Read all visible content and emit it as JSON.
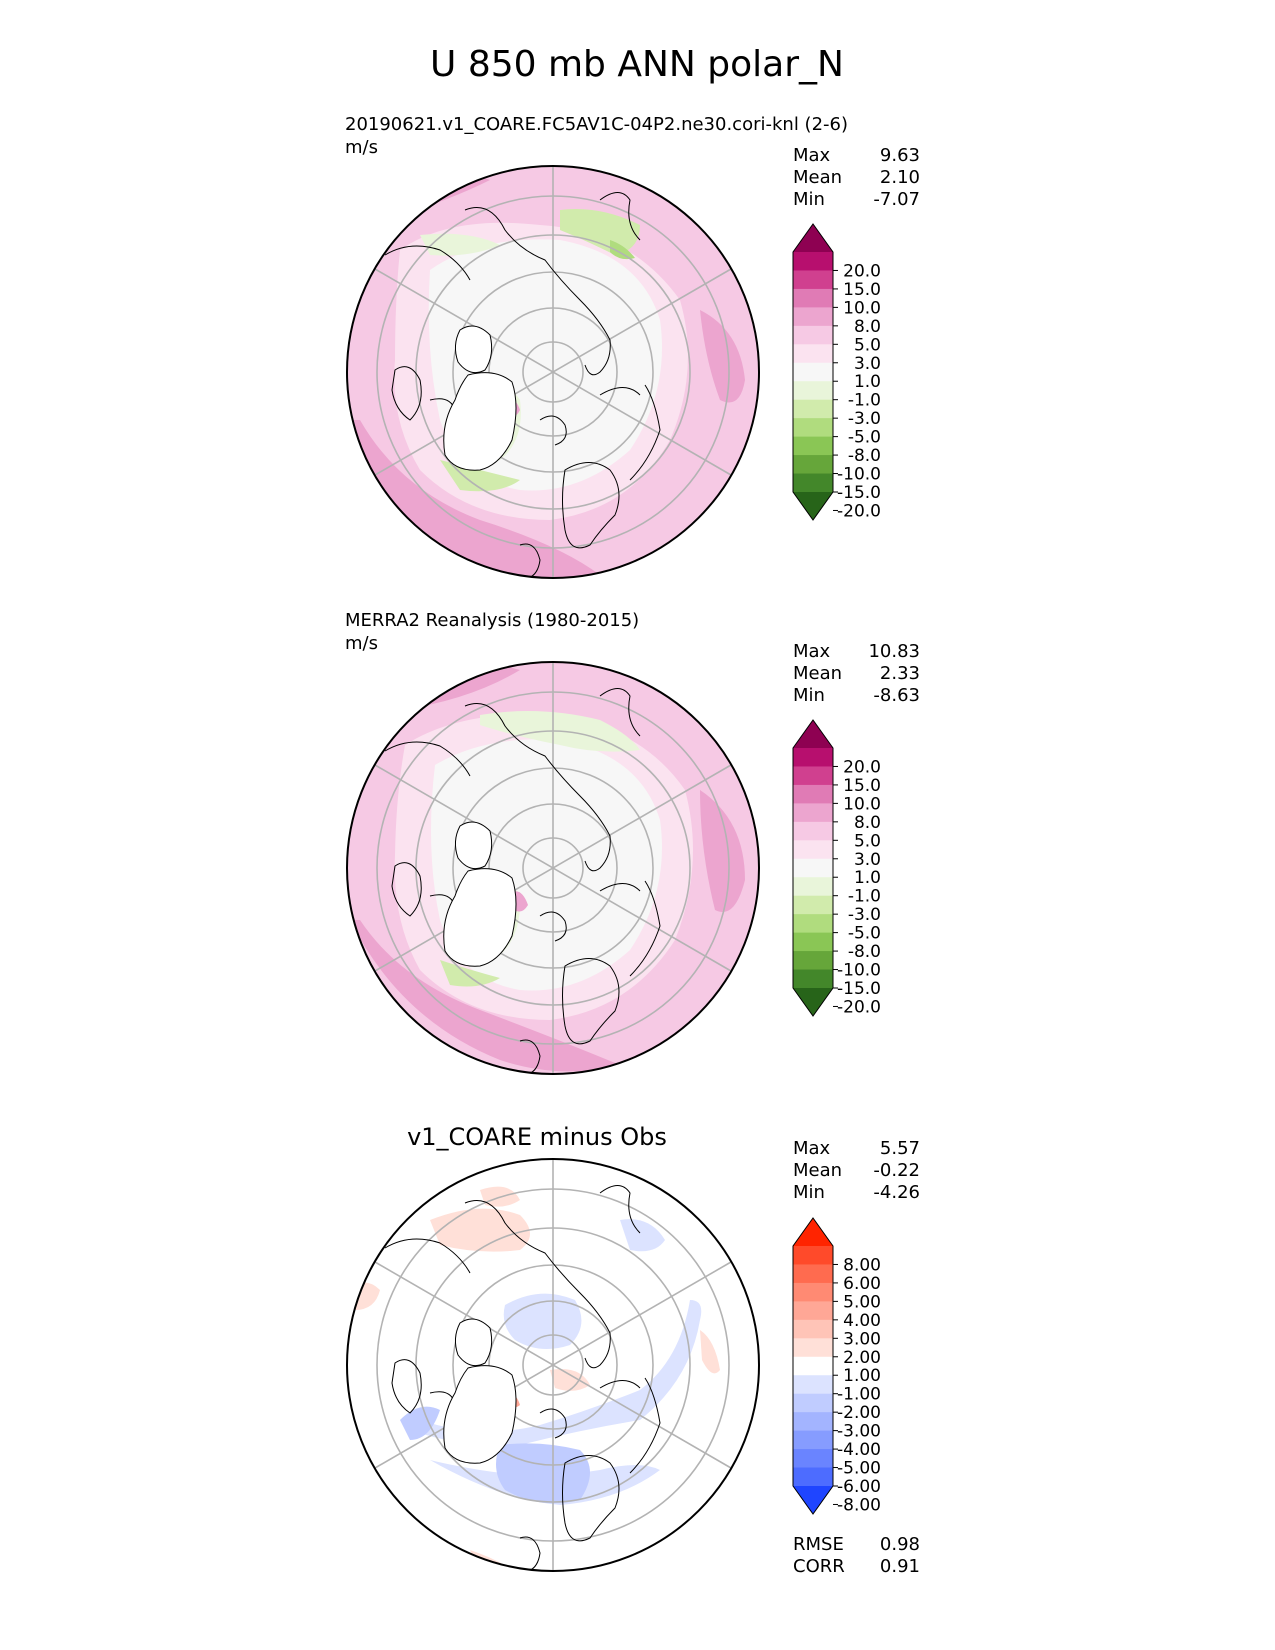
{
  "title": "U 850 mb ANN polar_N",
  "panels": [
    {
      "id": "test",
      "title": "20190621.v1_COARE.FC5AV1C-04P2.ne30.cori-knl (2-6)",
      "units": "m/s",
      "stats": [
        {
          "label": "Max",
          "value": "9.63"
        },
        {
          "label": "Mean",
          "value": "2.10"
        },
        {
          "label": "Min",
          "value": "-7.07"
        }
      ],
      "colorbar": {
        "labels": [
          "20.0",
          "15.0",
          "10.0",
          "8.0",
          "5.0",
          "3.0",
          "1.0",
          "-1.0",
          "-3.0",
          "-5.0",
          "-8.0",
          "-10.0",
          "-15.0",
          "-20.0"
        ],
        "colors": [
          "#8e0152",
          "#b70f6e",
          "#d0408f",
          "#e07bb5",
          "#eca5cf",
          "#f6c9e4",
          "#fbe3f0",
          "#f7f7f7",
          "#e9f5da",
          "#d1ebac",
          "#b0dc7e",
          "#8ac655",
          "#66a63a",
          "#43872a",
          "#276419"
        ]
      }
    },
    {
      "id": "reference",
      "title": "MERRA2 Reanalysis (1980-2015)",
      "units": "m/s",
      "stats": [
        {
          "label": "Max",
          "value": "10.83"
        },
        {
          "label": "Mean",
          "value": "2.33"
        },
        {
          "label": "Min",
          "value": "-8.63"
        }
      ],
      "colorbar": {
        "labels": [
          "20.0",
          "15.0",
          "10.0",
          "8.0",
          "5.0",
          "3.0",
          "1.0",
          "-1.0",
          "-3.0",
          "-5.0",
          "-8.0",
          "-10.0",
          "-15.0",
          "-20.0"
        ],
        "colors": [
          "#8e0152",
          "#b70f6e",
          "#d0408f",
          "#e07bb5",
          "#eca5cf",
          "#f6c9e4",
          "#fbe3f0",
          "#f7f7f7",
          "#e9f5da",
          "#d1ebac",
          "#b0dc7e",
          "#8ac655",
          "#66a63a",
          "#43872a",
          "#276419"
        ]
      }
    },
    {
      "id": "difference",
      "title": "v1_COARE minus Obs",
      "units": "",
      "stats": [
        {
          "label": "Max",
          "value": "5.57"
        },
        {
          "label": "Mean",
          "value": "-0.22"
        },
        {
          "label": "Min",
          "value": "-4.26"
        }
      ],
      "metrics": [
        {
          "label": "RMSE",
          "value": "0.98"
        },
        {
          "label": "CORR",
          "value": "0.91"
        }
      ],
      "colorbar": {
        "labels": [
          "8.00",
          "6.00",
          "5.00",
          "4.00",
          "3.00",
          "2.00",
          "1.00",
          "-1.00",
          "-2.00",
          "-3.00",
          "-4.00",
          "-5.00",
          "-6.00",
          "-8.00"
        ],
        "colors": [
          "#ff2400",
          "#ff4a2a",
          "#ff6b4f",
          "#ff8a73",
          "#ffa796",
          "#ffc4b7",
          "#ffe0d8",
          "#ffffff",
          "#dce3ff",
          "#c0ccff",
          "#a3b4ff",
          "#869cff",
          "#6a84ff",
          "#4d6cff",
          "#1f45ff"
        ]
      }
    }
  ]
}
